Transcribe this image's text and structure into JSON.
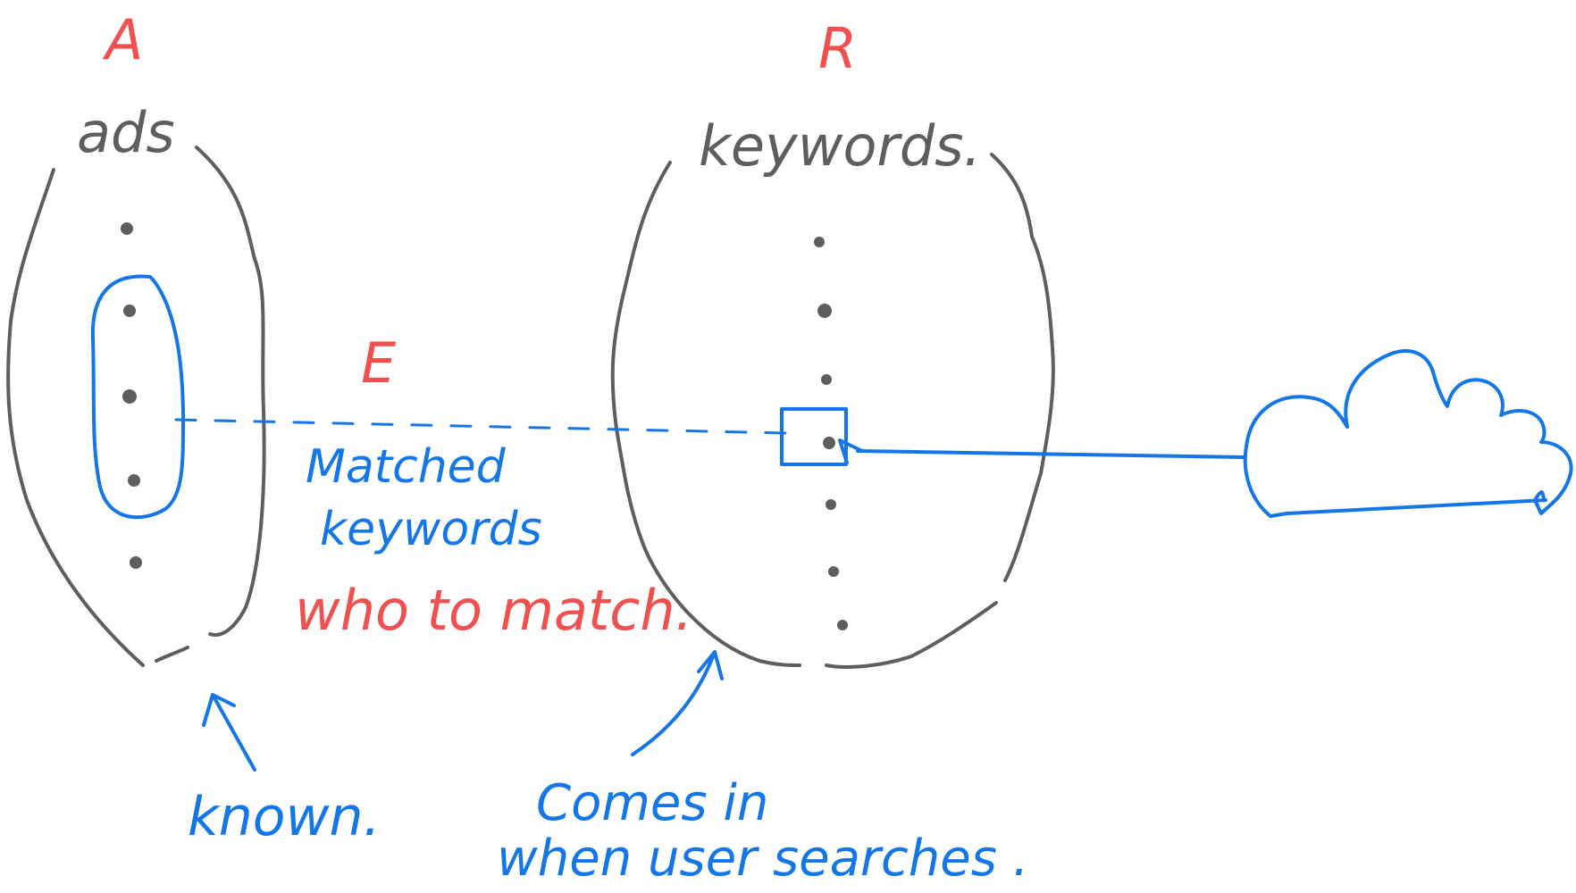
{
  "sets": {
    "left": {
      "letter": "A",
      "name": "ads",
      "note": "known."
    },
    "right": {
      "letter": "R",
      "name": "keywords.",
      "note_line1": "Comes in",
      "note_line2": "when user searches ."
    }
  },
  "edge": {
    "letter": "E",
    "label_line1": "Matched",
    "label_line2": "keywords",
    "question": "who to match."
  },
  "colors": {
    "gray_ink": "#5e5e5e",
    "red_ink": "#f0504f",
    "blue_ink": "#1576e8"
  }
}
